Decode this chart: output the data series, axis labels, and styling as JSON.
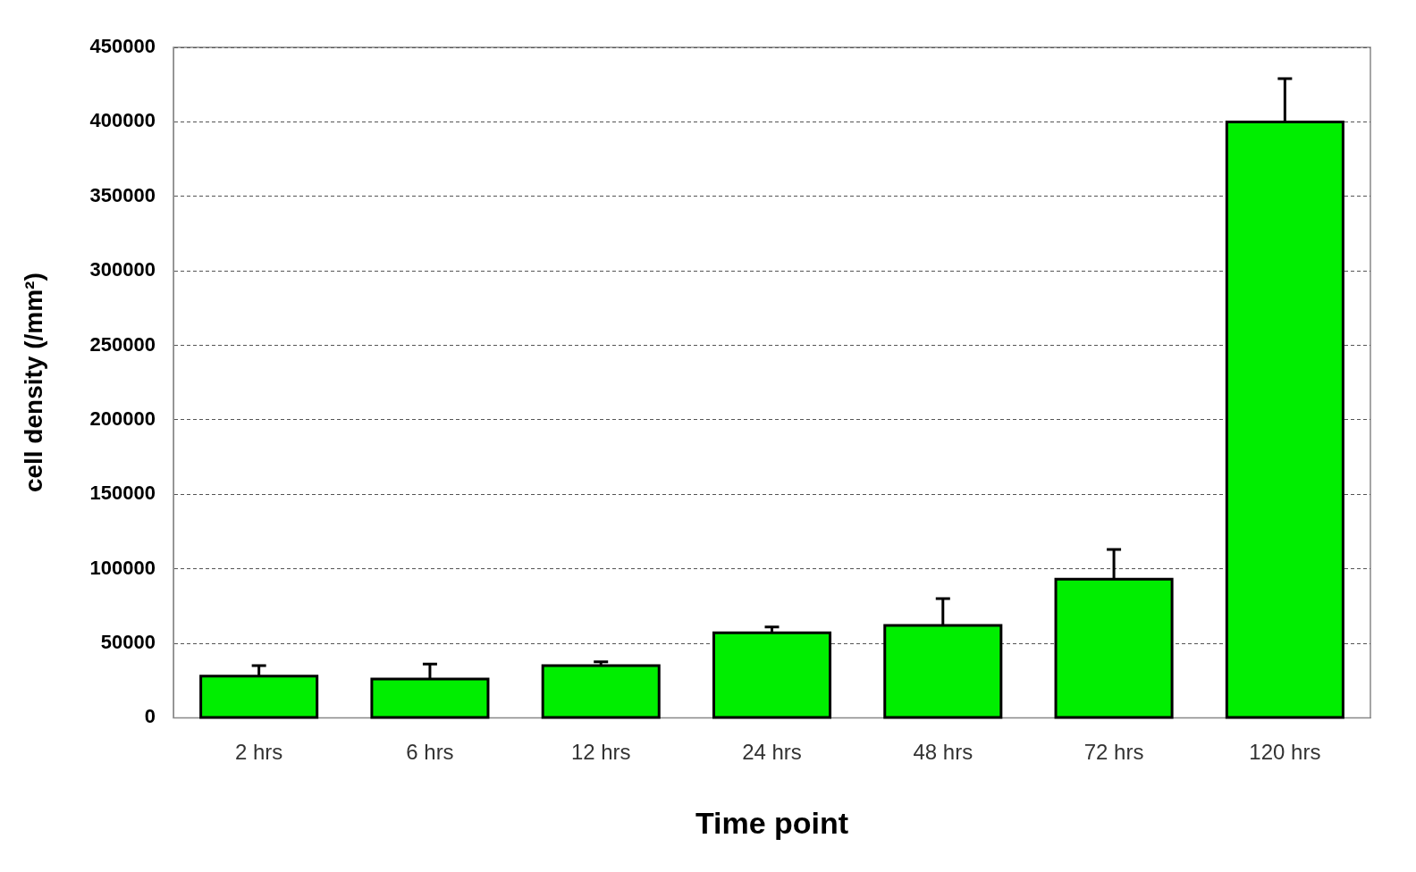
{
  "chart_data": {
    "type": "bar",
    "xlabel": "Time point",
    "ylabel": "cell density (/mm²)",
    "categories": [
      "2 hrs",
      "6 hrs",
      "12 hrs",
      "24 hrs",
      "48 hrs",
      "72 hrs",
      "120 hrs"
    ],
    "values": [
      28000,
      26000,
      35000,
      57000,
      62000,
      93000,
      400000
    ],
    "errors": [
      [
        28000,
        35000
      ],
      [
        26000,
        36000
      ],
      [
        35000,
        37500
      ],
      [
        57000,
        61000
      ],
      [
        62000,
        80000
      ],
      [
        93000,
        113000
      ],
      [
        400000,
        429000
      ]
    ],
    "color": "#00ee00",
    "ylim": [
      0,
      450000
    ],
    "yticks": [
      0,
      50000,
      100000,
      150000,
      200000,
      250000,
      300000,
      350000,
      400000,
      450000
    ],
    "grid": "y",
    "legend": false
  }
}
